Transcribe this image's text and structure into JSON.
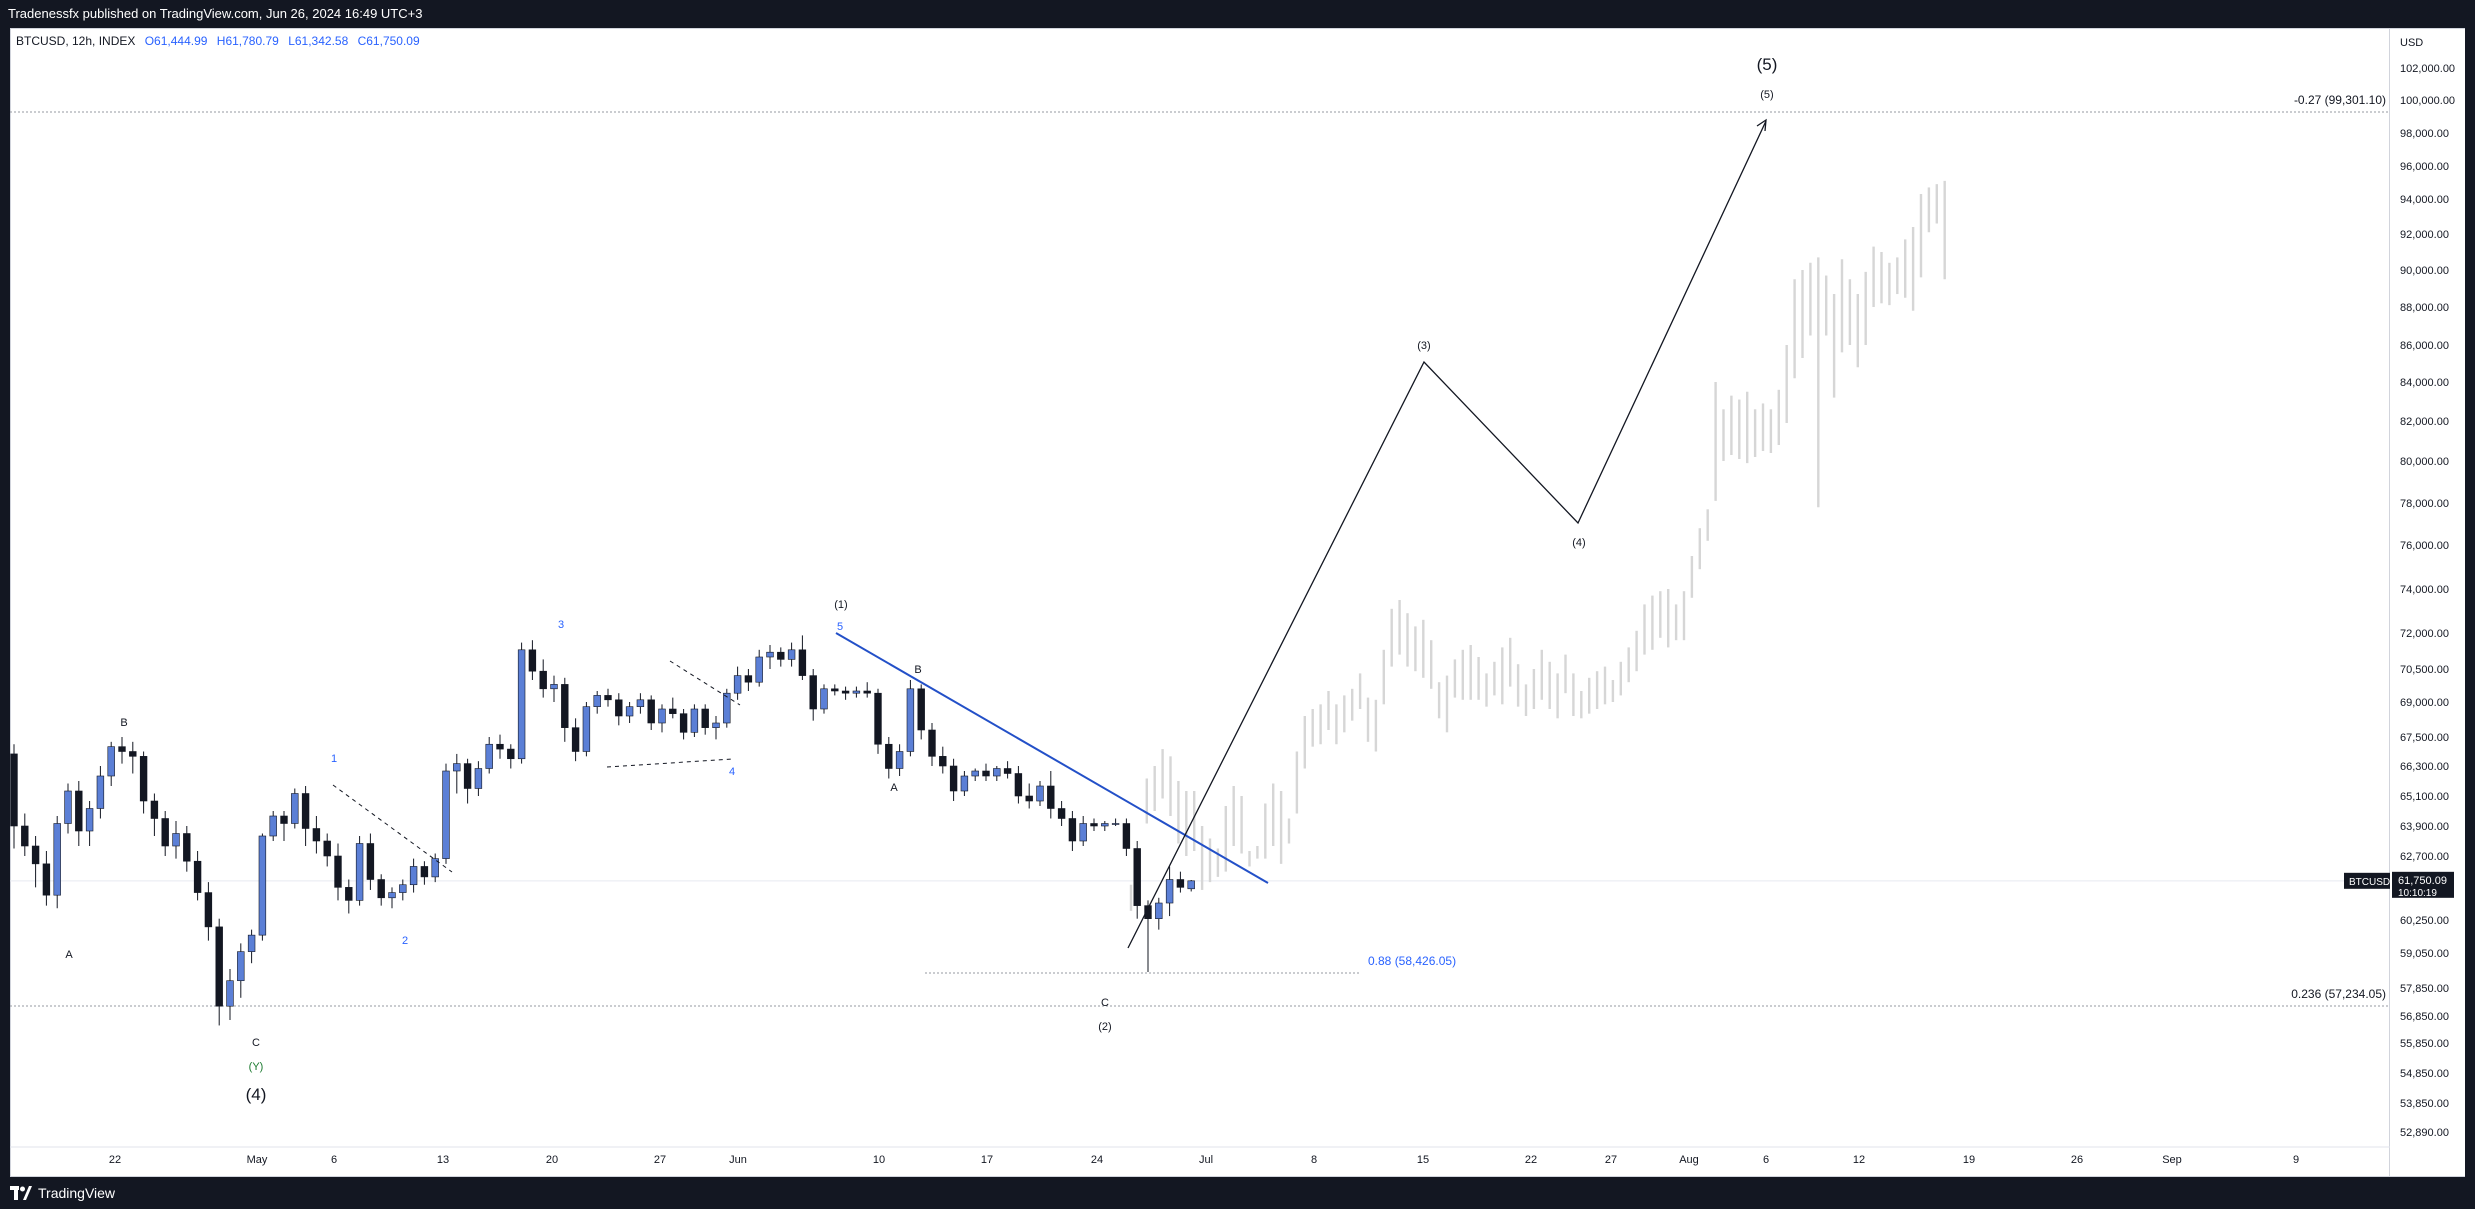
{
  "header": {
    "publish_line": "Tradenessfx published on TradingView.com, Jun 26, 2024 16:49 UTC+3"
  },
  "legend": {
    "symbol_line": "BTCUSD, 12h, INDEX",
    "open": "O61,444.99",
    "high": "H61,780.79",
    "low": "L61,342.58",
    "close": "C61,750.09"
  },
  "price_scale": {
    "currency": "USD",
    "ticks": [
      "102,000.00",
      "100,000.00",
      "98,000.00",
      "96,000.00",
      "94,000.00",
      "92,000.00",
      "90,000.00",
      "88,000.00",
      "86,000.00",
      "84,000.00",
      "82,000.00",
      "80,000.00",
      "78,000.00",
      "76,000.00",
      "74,000.00",
      "72,000.00",
      "70,500.00",
      "69,000.00",
      "67,500.00",
      "66,300.00",
      "65,100.00",
      "63,900.00",
      "62,700.00",
      "60,250.00",
      "59,050.00",
      "57,850.00",
      "56,850.00",
      "55,850.00",
      "54,850.00",
      "53,850.00",
      "52,890.00"
    ]
  },
  "last_price": {
    "symbol": "BTCUSD",
    "price": "61,750.09",
    "countdown": "10:10:19",
    "color": "#131722"
  },
  "time_axis": {
    "labels": [
      "22",
      "May",
      "6",
      "13",
      "20",
      "27",
      "Jun",
      "10",
      "17",
      "24",
      "Jul",
      "8",
      "15",
      "22",
      "27",
      "Aug",
      "6",
      "12",
      "19",
      "26",
      "Sep",
      "9"
    ]
  },
  "colors": {
    "bull": "#5b7fd6",
    "bear": "#131722",
    "trendline": "#2350c8",
    "projection": "#d6d6d6",
    "fib_label": "#2962ff"
  },
  "fib_levels": [
    {
      "label": "-0.27 (99,301.10)",
      "price": 99301.1
    },
    {
      "label": "0.236 (57,234.05)",
      "price": 57234.05
    },
    {
      "label": "0.88 (58,426.05)",
      "price": 58426.05
    }
  ],
  "wave_labels": {
    "big_5": "(5)",
    "small_5": "(5)",
    "w3": "(3)",
    "w4": "(4)",
    "w1": "(1)",
    "w2": "(2)",
    "big_4": "(4)",
    "y": "(Y)",
    "c_bottom": "C",
    "c_mid": "C",
    "a_left": "A",
    "b_left": "B",
    "a_mid": "A",
    "b_mid": "B",
    "n1": "1",
    "n2": "2",
    "n3": "3",
    "n4": "4",
    "n5": "5"
  },
  "footer": {
    "brand": "TradingView"
  },
  "chart_data": {
    "type": "candlestick",
    "symbol": "BTCUSD",
    "interval": "12h",
    "ylim": [
      52500,
      103000
    ],
    "actual_ohlc": [
      [
        66800,
        67200,
        63000,
        63900
      ],
      [
        63900,
        64400,
        62700,
        63100
      ],
      [
        63100,
        63500,
        61500,
        62400
      ],
      [
        62400,
        62900,
        60800,
        61200
      ],
      [
        61200,
        64300,
        60700,
        64000
      ],
      [
        64000,
        65600,
        63600,
        65300
      ],
      [
        65300,
        65700,
        63100,
        63700
      ],
      [
        63700,
        64900,
        63100,
        64600
      ],
      [
        64600,
        66300,
        64200,
        65900
      ],
      [
        65900,
        67300,
        65500,
        67100
      ],
      [
        67100,
        67500,
        66400,
        66900
      ],
      [
        66900,
        67300,
        66000,
        66700
      ],
      [
        66700,
        66900,
        64400,
        64900
      ],
      [
        64900,
        65200,
        63500,
        64200
      ],
      [
        64200,
        64500,
        62700,
        63100
      ],
      [
        63100,
        64100,
        62600,
        63600
      ],
      [
        63600,
        63900,
        62100,
        62500
      ],
      [
        62500,
        62900,
        61000,
        61300
      ],
      [
        61300,
        61700,
        59500,
        60000
      ],
      [
        60000,
        60300,
        56500,
        57200
      ],
      [
        57200,
        58500,
        56700,
        58100
      ],
      [
        58100,
        59400,
        57500,
        59100
      ],
      [
        59100,
        59900,
        58700,
        59700
      ],
      [
        59700,
        63600,
        59500,
        63500
      ],
      [
        63500,
        64500,
        63300,
        64300
      ],
      [
        64300,
        64500,
        63300,
        64000
      ],
      [
        64000,
        65400,
        63800,
        65200
      ],
      [
        65200,
        65500,
        63100,
        63800
      ],
      [
        63800,
        64300,
        62800,
        63300
      ],
      [
        63300,
        63600,
        62300,
        62700
      ],
      [
        62700,
        63200,
        61000,
        61500
      ],
      [
        61500,
        61800,
        60500,
        61000
      ],
      [
        61000,
        63500,
        60800,
        63200
      ],
      [
        63200,
        63600,
        61400,
        61800
      ],
      [
        61800,
        62000,
        60800,
        61100
      ],
      [
        61100,
        61500,
        60700,
        61300
      ],
      [
        61300,
        61800,
        61000,
        61600
      ],
      [
        61600,
        62600,
        61300,
        62300
      ],
      [
        62300,
        62500,
        61600,
        61900
      ],
      [
        61900,
        62800,
        61700,
        62600
      ],
      [
        62600,
        66400,
        62400,
        66100
      ],
      [
        66100,
        66800,
        65200,
        66400
      ],
      [
        66400,
        66600,
        64800,
        65400
      ],
      [
        65400,
        66500,
        65100,
        66200
      ],
      [
        66200,
        67500,
        66000,
        67200
      ],
      [
        67200,
        67600,
        66600,
        67000
      ],
      [
        67000,
        67200,
        66200,
        66600
      ],
      [
        66600,
        71600,
        66400,
        71300
      ],
      [
        71300,
        71700,
        70000,
        70400
      ],
      [
        70400,
        70900,
        69200,
        69600
      ],
      [
        69600,
        70200,
        69000,
        69800
      ],
      [
        69800,
        70100,
        67300,
        67900
      ],
      [
        67900,
        68300,
        66500,
        66900
      ],
      [
        66900,
        69000,
        66700,
        68800
      ],
      [
        68800,
        69500,
        68500,
        69300
      ],
      [
        69300,
        69600,
        68800,
        69100
      ],
      [
        69100,
        69400,
        68000,
        68400
      ],
      [
        68400,
        69000,
        68100,
        68800
      ],
      [
        68800,
        69400,
        68500,
        69100
      ],
      [
        69100,
        69300,
        67800,
        68100
      ],
      [
        68100,
        68900,
        67700,
        68700
      ],
      [
        68700,
        69200,
        68300,
        68500
      ],
      [
        68500,
        68700,
        67400,
        67700
      ],
      [
        67700,
        68900,
        67500,
        68700
      ],
      [
        68700,
        68900,
        67600,
        67900
      ],
      [
        67900,
        68400,
        67400,
        68100
      ],
      [
        68100,
        69600,
        67900,
        69400
      ],
      [
        69400,
        70600,
        69100,
        70200
      ],
      [
        70200,
        70500,
        69500,
        69900
      ],
      [
        69900,
        71300,
        69700,
        71000
      ],
      [
        71000,
        71500,
        70500,
        71200
      ],
      [
        71200,
        71400,
        70600,
        70900
      ],
      [
        70900,
        71600,
        70600,
        71300
      ],
      [
        71300,
        71900,
        70000,
        70200
      ],
      [
        70200,
        70500,
        68200,
        68700
      ],
      [
        68700,
        69800,
        68500,
        69600
      ],
      [
        69600,
        69800,
        69300,
        69500
      ],
      [
        69500,
        69700,
        69100,
        69400
      ],
      [
        69400,
        69700,
        69200,
        69500
      ],
      [
        69500,
        69900,
        69200,
        69400
      ],
      [
        69400,
        69600,
        66800,
        67200
      ],
      [
        67200,
        67500,
        65800,
        66200
      ],
      [
        66200,
        67200,
        65900,
        66900
      ],
      [
        66900,
        70000,
        66700,
        69600
      ],
      [
        69600,
        69800,
        67400,
        67800
      ],
      [
        67800,
        68100,
        66300,
        66700
      ],
      [
        66700,
        67100,
        66000,
        66300
      ],
      [
        66300,
        66600,
        64900,
        65300
      ],
      [
        65300,
        66100,
        65100,
        65900
      ],
      [
        65900,
        66200,
        65700,
        66100
      ],
      [
        66100,
        66400,
        65700,
        65900
      ],
      [
        65900,
        66300,
        65700,
        66200
      ],
      [
        66200,
        66500,
        65800,
        66000
      ],
      [
        66000,
        66300,
        64800,
        65100
      ],
      [
        65100,
        65600,
        64600,
        64900
      ],
      [
        64900,
        65700,
        64700,
        65500
      ],
      [
        65500,
        66100,
        64200,
        64600
      ],
      [
        64600,
        64900,
        63900,
        64200
      ],
      [
        64200,
        64500,
        62900,
        63300
      ],
      [
        63300,
        64300,
        63100,
        64000
      ],
      [
        64000,
        64200,
        63700,
        63900
      ],
      [
        63900,
        64100,
        63700,
        64000
      ],
      [
        64000,
        64200,
        63900,
        64000
      ],
      [
        64000,
        64200,
        62700,
        63000
      ],
      [
        63000,
        63300,
        60300,
        60800
      ],
      [
        60800,
        61000,
        58400,
        60300
      ],
      [
        60300,
        61100,
        59900,
        60900
      ],
      [
        60900,
        62300,
        60400,
        61800
      ],
      [
        61800,
        62100,
        61300,
        61500
      ],
      [
        61444.99,
        61780.79,
        61342.58,
        61750.09
      ]
    ],
    "projection_bars": [
      [
        61600,
        60600
      ],
      [
        62700,
        62400
      ],
      [
        65800,
        64000
      ],
      [
        66300,
        64500
      ],
      [
        67000,
        65000
      ],
      [
        66700,
        64300
      ],
      [
        65700,
        63200
      ],
      [
        65300,
        62700
      ],
      [
        65300,
        62900
      ],
      [
        63900,
        61400
      ],
      [
        63400,
        61700
      ],
      [
        63000,
        61900
      ],
      [
        64700,
        62100
      ],
      [
        65500,
        63100
      ],
      [
        65100,
        62800
      ],
      [
        62900,
        62300
      ],
      [
        63100,
        62600
      ],
      [
        64800,
        62600
      ],
      [
        65600,
        63100
      ],
      [
        65300,
        62400
      ],
      [
        64200,
        63200
      ],
      [
        66900,
        64400
      ],
      [
        68400,
        66200
      ],
      [
        68700,
        67100
      ],
      [
        68900,
        67200
      ],
      [
        69500,
        67800
      ],
      [
        68900,
        67200
      ],
      [
        69300,
        67700
      ],
      [
        69600,
        68200
      ],
      [
        70300,
        68700
      ],
      [
        69200,
        67300
      ],
      [
        69100,
        66900
      ],
      [
        71300,
        68900
      ],
      [
        73100,
        70600
      ],
      [
        73500,
        71100
      ],
      [
        72900,
        70600
      ],
      [
        72300,
        70400
      ],
      [
        72600,
        70100
      ],
      [
        71700,
        69600
      ],
      [
        69900,
        68300
      ],
      [
        70200,
        67700
      ],
      [
        70900,
        69200
      ],
      [
        71300,
        69100
      ],
      [
        71500,
        69100
      ],
      [
        71000,
        69100
      ],
      [
        70300,
        68800
      ],
      [
        70800,
        69300
      ],
      [
        71400,
        68900
      ],
      [
        71800,
        69700
      ],
      [
        70700,
        68800
      ],
      [
        69800,
        68400
      ],
      [
        70500,
        68700
      ],
      [
        71300,
        69100
      ],
      [
        70800,
        68700
      ],
      [
        70300,
        68300
      ],
      [
        71100,
        69400
      ],
      [
        70300,
        68400
      ],
      [
        69500,
        68300
      ],
      [
        70100,
        68500
      ],
      [
        70400,
        68700
      ],
      [
        70600,
        68900
      ],
      [
        70000,
        69000
      ],
      [
        70800,
        69300
      ],
      [
        71400,
        69900
      ],
      [
        72100,
        70400
      ],
      [
        73300,
        71100
      ],
      [
        73700,
        71300
      ],
      [
        73900,
        71800
      ],
      [
        74000,
        71400
      ],
      [
        73300,
        71700
      ],
      [
        73900,
        71700
      ],
      [
        75500,
        73600
      ],
      [
        76800,
        74900
      ],
      [
        77700,
        76200
      ],
      [
        84000,
        78100
      ],
      [
        82600,
        80000
      ],
      [
        83300,
        80300
      ],
      [
        83100,
        80100
      ],
      [
        83500,
        79900
      ],
      [
        82600,
        80200
      ],
      [
        82900,
        80500
      ],
      [
        82600,
        80400
      ],
      [
        83600,
        80800
      ],
      [
        86000,
        81900
      ],
      [
        89500,
        84200
      ],
      [
        90000,
        85300
      ],
      [
        90400,
        86500
      ],
      [
        90700,
        77800
      ],
      [
        89700,
        86500
      ],
      [
        88700,
        83200
      ],
      [
        90600,
        85600
      ],
      [
        89500,
        86000
      ],
      [
        88700,
        84800
      ],
      [
        89900,
        86000
      ],
      [
        91300,
        88000
      ],
      [
        91000,
        88200
      ],
      [
        90400,
        88100
      ],
      [
        90700,
        88700
      ],
      [
        91700,
        88500
      ],
      [
        92400,
        87800
      ],
      [
        94300,
        89600
      ],
      [
        94700,
        92100
      ],
      [
        94900,
        92600
      ],
      [
        95100,
        89500
      ]
    ],
    "wave_path_projection": [
      [
        25.5,
        60100
      ],
      [
        38.5,
        85200
      ],
      [
        44.5,
        77000
      ],
      [
        53.5,
        99000
      ]
    ],
    "blue_trendline": [
      [
        7.7,
        72000
      ],
      [
        33.5,
        61100
      ]
    ],
    "time_labels": [
      "22",
      "May",
      "6",
      "13",
      "20",
      "27",
      "Jun",
      "10",
      "17",
      "24",
      "Jul",
      "8",
      "15",
      "22",
      "27",
      "Aug",
      "6",
      "12",
      "19",
      "26",
      "Sep",
      "9"
    ]
  }
}
